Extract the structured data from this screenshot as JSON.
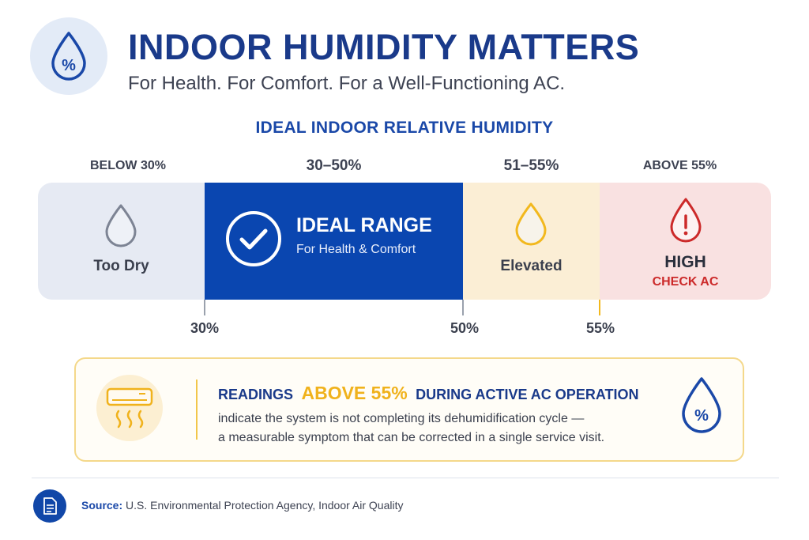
{
  "header": {
    "title": "INDOOR HUMIDITY MATTERS",
    "subtitle": "For Health. For Comfort. For a Well-Functioning AC.",
    "logo_icon": "humidity-drop-percent-icon"
  },
  "scale": {
    "title": "IDEAL INDOOR RELATIVE HUMIDITY",
    "ranges": [
      {
        "label": "BELOW 30%",
        "text": "Too Dry",
        "icon": "drop-outline-icon",
        "color": "#e6eaf3"
      },
      {
        "label": "30–50%",
        "text": "IDEAL RANGE",
        "subtext": "For Health & Comfort",
        "icon": "check-circle-icon",
        "color": "#0a46b0"
      },
      {
        "label": "51–55%",
        "text": "Elevated",
        "icon": "drop-yellow-icon",
        "color": "#fbeed5"
      },
      {
        "label": "ABOVE 55%",
        "text": "HIGH",
        "subtext": "CHECK AC",
        "icon": "drop-alert-icon",
        "color": "#f9e1e1"
      }
    ],
    "ticks": [
      "30%",
      "50%",
      "55%"
    ]
  },
  "callout": {
    "head_pre": "READINGS",
    "head_highlight": "ABOVE 55%",
    "head_post": "DURING ACTIVE AC OPERATION",
    "body_line1": "indicate the system is not completing its dehumidification cycle —",
    "body_line2": "a measurable symptom that can be corrected in a single service visit.",
    "left_icon": "air-conditioner-icon",
    "right_icon": "humidity-drop-percent-icon"
  },
  "footer": {
    "source_label": "Source:",
    "source_text": "U.S. Environmental Protection Agency, Indoor Air Quality",
    "icon": "document-icon"
  }
}
